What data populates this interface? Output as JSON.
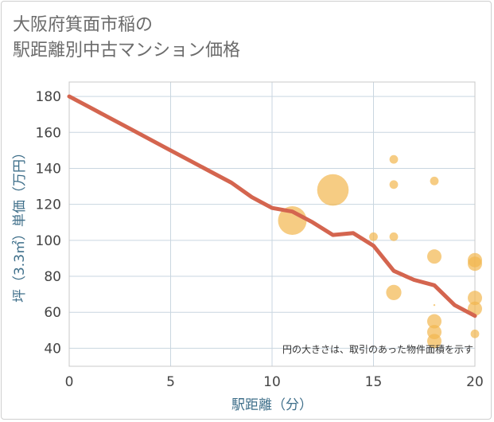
{
  "title_lines": [
    "大阪府箕面市稲の",
    "駅距離別中古マンション価格"
  ],
  "chart_data": {
    "type": "scatter",
    "xlabel": "駅距離（分）",
    "ylabel": "坪（3.3㎡）単価（万円）",
    "xlim": [
      0,
      20
    ],
    "ylim": [
      30,
      188
    ],
    "xticks": [
      0,
      5,
      10,
      15,
      20
    ],
    "yticks": [
      40,
      60,
      80,
      100,
      120,
      140,
      160,
      180
    ],
    "grid": true,
    "annotation": "円の大きさは、取引のあった物件面積を示す",
    "colors": {
      "bubble": "#f2b64e",
      "line": "#d4654f"
    },
    "trend_line": {
      "name": "average",
      "x": [
        0,
        1,
        2,
        3,
        4,
        5,
        6,
        7,
        8,
        9,
        10,
        11,
        12,
        13,
        14,
        15,
        16,
        17,
        18,
        19,
        20
      ],
      "y": [
        180,
        174,
        168,
        162,
        156,
        150,
        144,
        138,
        132,
        124,
        118,
        116,
        110,
        103,
        104,
        97,
        83,
        78,
        75,
        64,
        58
      ]
    },
    "points": [
      {
        "x": 11,
        "y": 111,
        "size": 3.0
      },
      {
        "x": 13,
        "y": 128,
        "size": 3.3
      },
      {
        "x": 15,
        "y": 102,
        "size": 0.9
      },
      {
        "x": 16,
        "y": 145,
        "size": 0.9
      },
      {
        "x": 16,
        "y": 131,
        "size": 0.9
      },
      {
        "x": 16,
        "y": 102,
        "size": 0.9
      },
      {
        "x": 16,
        "y": 71,
        "size": 1.6
      },
      {
        "x": 18,
        "y": 133,
        "size": 0.9
      },
      {
        "x": 18,
        "y": 91,
        "size": 1.5
      },
      {
        "x": 18,
        "y": 64,
        "size": 0.2
      },
      {
        "x": 18,
        "y": 55,
        "size": 1.5
      },
      {
        "x": 18,
        "y": 49,
        "size": 1.5
      },
      {
        "x": 18,
        "y": 44,
        "size": 1.5
      },
      {
        "x": 20,
        "y": 89,
        "size": 1.5
      },
      {
        "x": 20,
        "y": 87,
        "size": 1.5
      },
      {
        "x": 20,
        "y": 68,
        "size": 1.5
      },
      {
        "x": 20,
        "y": 62,
        "size": 1.5
      },
      {
        "x": 20,
        "y": 48,
        "size": 0.9
      }
    ]
  }
}
